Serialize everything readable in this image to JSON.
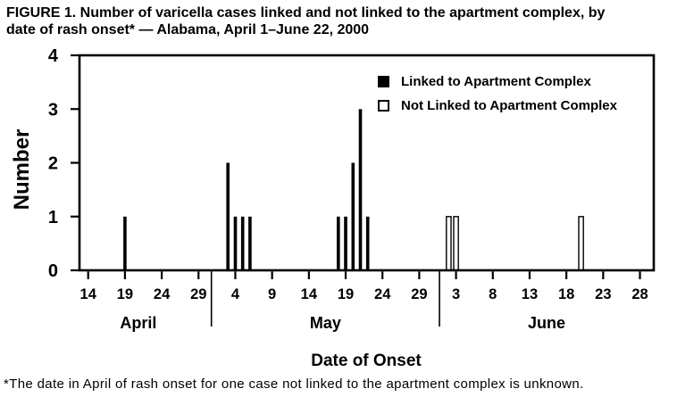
{
  "title": {
    "line1": "FIGURE 1. Number of varicella cases linked and not linked to the apartment complex, by",
    "line2": "date of rash onset* — Alabama, April 1–June 22, 2000"
  },
  "footnote": "*The date in April of rash onset for one case not linked to the apartment complex is unknown.",
  "chart_data": {
    "type": "bar",
    "title": "FIGURE 1. Number of varicella cases linked and not linked to the apartment complex, by date of rash onset* — Alabama, April 1–June 22, 2000",
    "xlabel": "Date of Onset",
    "ylabel": "Number",
    "ylim": [
      0,
      4
    ],
    "y_ticks": [
      0,
      1,
      2,
      3,
      4
    ],
    "grid": "off",
    "legend_position": "inside-top-right",
    "colors": {
      "linked": "#000000",
      "not_linked": "#ffffff",
      "axis": "#000000"
    },
    "x_axis": {
      "months": [
        {
          "label": "April",
          "ticks": [
            14,
            19,
            24,
            29
          ]
        },
        {
          "label": "May",
          "ticks": [
            4,
            9,
            14,
            19,
            24,
            29
          ]
        },
        {
          "label": "June",
          "ticks": [
            3,
            8,
            13,
            18,
            23,
            28
          ]
        }
      ]
    },
    "legend": [
      {
        "label": "Linked to Apartment Complex",
        "fill": "#000000"
      },
      {
        "label": "Not Linked to Apartment Complex",
        "fill": "#ffffff"
      }
    ],
    "series": [
      {
        "name": "Linked to Apartment Complex",
        "fill": "#000000",
        "points": [
          {
            "month": "April",
            "day": 19,
            "value": 1
          },
          {
            "month": "May",
            "day": 3,
            "value": 2
          },
          {
            "month": "May",
            "day": 4,
            "value": 1
          },
          {
            "month": "May",
            "day": 5,
            "value": 1
          },
          {
            "month": "May",
            "day": 6,
            "value": 1
          },
          {
            "month": "May",
            "day": 18,
            "value": 1
          },
          {
            "month": "May",
            "day": 19,
            "value": 1
          },
          {
            "month": "May",
            "day": 20,
            "value": 2
          },
          {
            "month": "May",
            "day": 21,
            "value": 3
          },
          {
            "month": "May",
            "day": 22,
            "value": 1
          }
        ]
      },
      {
        "name": "Not Linked to Apartment Complex",
        "fill": "#ffffff",
        "points": [
          {
            "month": "June",
            "day": 2,
            "value": 1
          },
          {
            "month": "June",
            "day": 3,
            "value": 1
          },
          {
            "month": "June",
            "day": 20,
            "value": 1
          }
        ]
      }
    ]
  }
}
